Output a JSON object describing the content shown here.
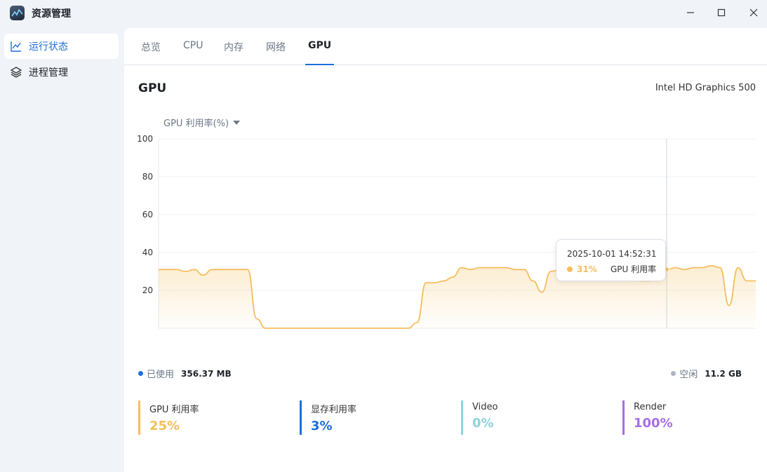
{
  "app": {
    "title": "资源管理",
    "icon": "monitor-icon"
  },
  "window_controls": {
    "minimize": "minimize-icon",
    "maximize": "maximize-icon",
    "close": "close-icon"
  },
  "sidebar": {
    "items": [
      {
        "label": "运行状态",
        "icon": "line-chart-icon",
        "active": true
      },
      {
        "label": "进程管理",
        "icon": "layers-icon",
        "active": false
      }
    ]
  },
  "tabs": [
    {
      "label": "总览"
    },
    {
      "label": "CPU"
    },
    {
      "label": "内存"
    },
    {
      "label": "网络"
    },
    {
      "label": "GPU",
      "active": true
    }
  ],
  "section": {
    "title": "GPU",
    "device": "Intel HD Graphics 500"
  },
  "metric_select": {
    "label": "GPU 利用率(%)"
  },
  "chart_data": {
    "type": "area",
    "series": [
      {
        "name": "GPU 利用率",
        "color": "#f6be5e",
        "values": [
          31,
          31,
          31,
          30,
          31,
          28,
          31,
          31,
          31,
          31,
          31,
          5,
          0,
          0,
          0,
          0,
          0,
          0,
          0,
          0,
          0,
          0,
          0,
          0,
          0,
          0,
          0,
          0,
          0,
          3,
          24,
          24,
          25,
          27,
          32,
          31,
          32,
          32,
          32,
          32,
          31,
          31,
          25,
          19,
          30,
          31,
          32,
          32,
          31,
          31,
          31,
          31,
          31,
          28,
          25,
          25,
          31,
          31,
          32,
          31,
          32,
          32,
          33,
          32,
          12,
          32,
          25,
          25
        ]
      }
    ],
    "yticks": [
      20,
      40,
      60,
      80,
      100
    ],
    "ylim": [
      0,
      100
    ],
    "grid": true,
    "hover_index": 57
  },
  "tooltip": {
    "time": "2025-10-01 14:52:31",
    "value": "31%",
    "series": "GPU 利用率"
  },
  "memory": {
    "used_label": "已使用",
    "used_value": "356.37 MB",
    "used_color": "#1e6fd9",
    "free_label": "空闲",
    "free_value": "11.2 GB",
    "free_color": "#aab4c3"
  },
  "stats": [
    {
      "label": "GPU 利用率",
      "value": "25%",
      "color": "#f6be5e"
    },
    {
      "label": "显存利用率",
      "value": "3%",
      "color": "#1e6fd9"
    },
    {
      "label": "Video",
      "value": "0%",
      "color": "#8fd3dc"
    },
    {
      "label": "Render",
      "value": "100%",
      "color": "#a66ee8"
    }
  ]
}
